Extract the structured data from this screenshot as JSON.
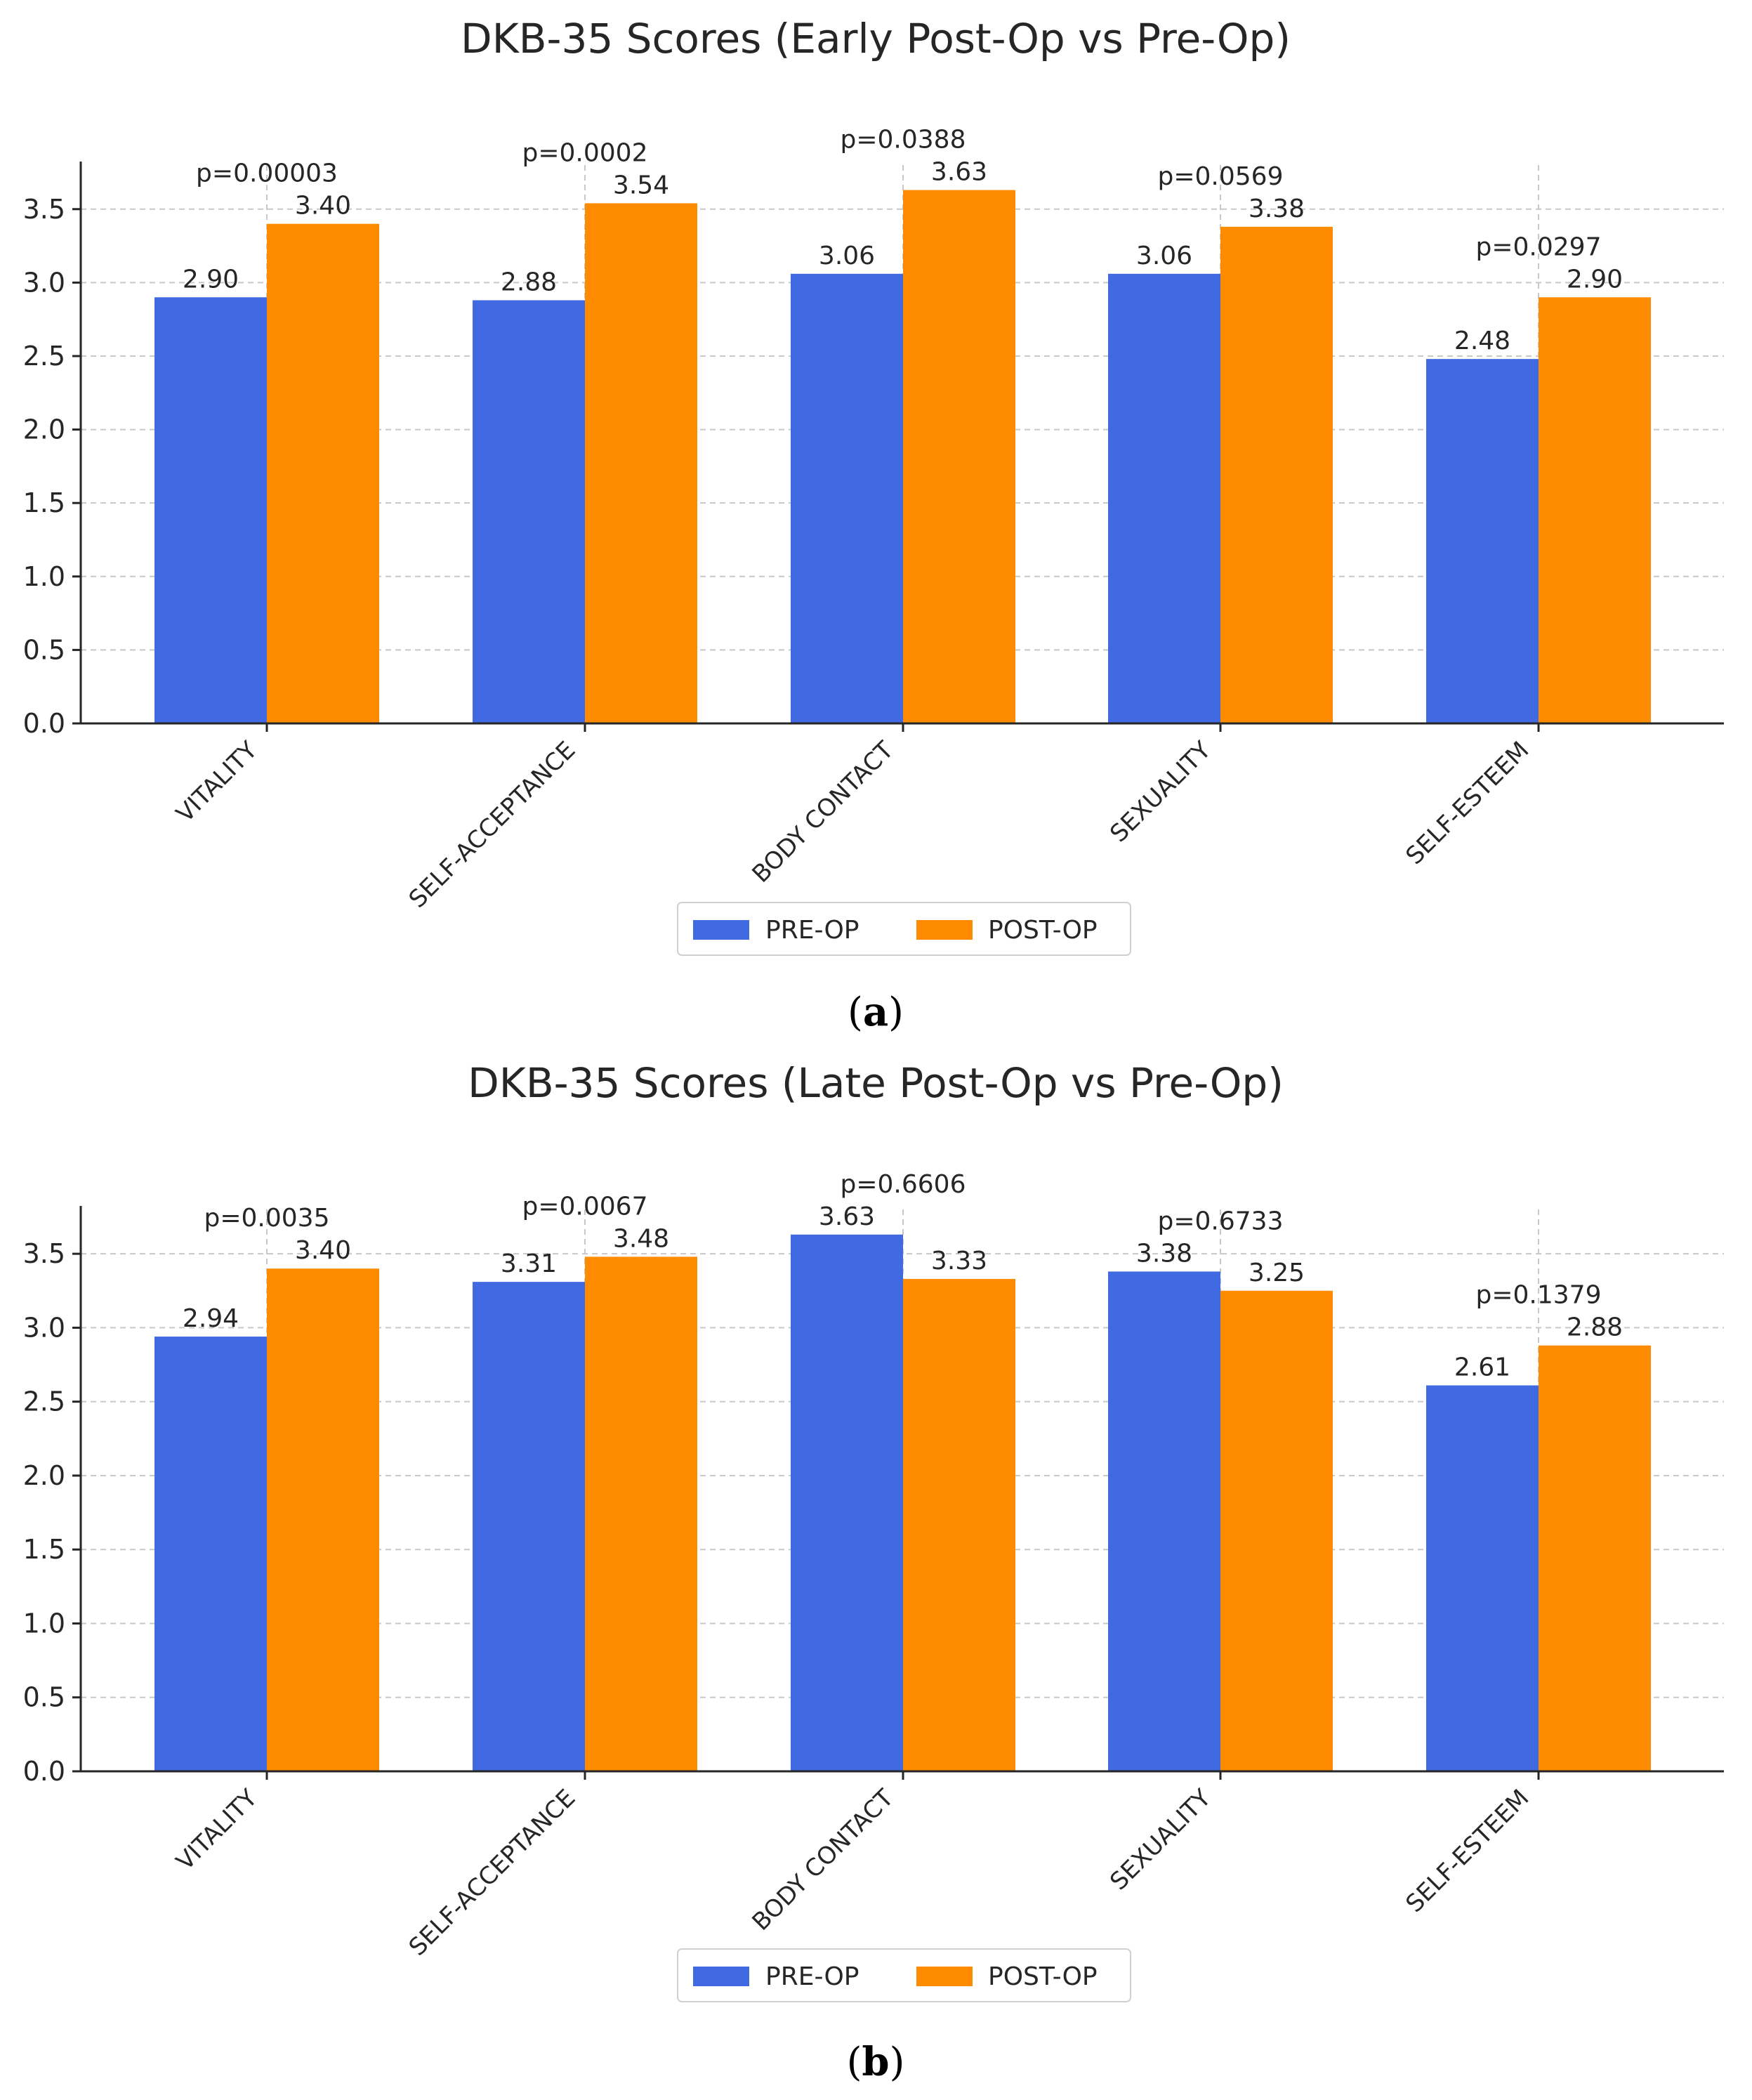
{
  "colors": {
    "pre": "#4169E1",
    "post": "#FF8C00"
  },
  "chart_data": [
    {
      "type": "bar",
      "title": "DKB-35 Scores (Early Post-Op vs Pre-Op)",
      "panel_label": "a",
      "categories": [
        "VITALITY",
        "SELF-ACCEPTANCE",
        "BODY CONTACT",
        "SEXUALITY",
        "SELF-ESTEEM"
      ],
      "series": [
        {
          "name": "PRE-OP",
          "values": [
            2.9,
            2.88,
            3.06,
            3.06,
            2.48
          ],
          "labels": [
            "2.90",
            "2.88",
            "3.06",
            "3.06",
            "2.48"
          ]
        },
        {
          "name": "POST-OP",
          "values": [
            3.4,
            3.54,
            3.63,
            3.38,
            2.9
          ],
          "labels": [
            "3.40",
            "3.54",
            "3.63",
            "3.38",
            "2.90"
          ]
        }
      ],
      "p_values": [
        "p=0.00003",
        "p=0.0002",
        "p=0.0388",
        "p=0.0569",
        "p=0.0297"
      ],
      "yticks": [
        "0.0",
        "0.5",
        "1.0",
        "1.5",
        "2.0",
        "2.5",
        "3.0",
        "3.5"
      ],
      "ylim": [
        0,
        3.8
      ],
      "grid": true,
      "legend": "bottom-center"
    },
    {
      "type": "bar",
      "title": "DKB-35 Scores (Late Post-Op vs Pre-Op)",
      "panel_label": "b",
      "categories": [
        "VITALITY",
        "SELF-ACCEPTANCE",
        "BODY CONTACT",
        "SEXUALITY",
        "SELF-ESTEEM"
      ],
      "series": [
        {
          "name": "PRE-OP",
          "values": [
            2.94,
            3.31,
            3.63,
            3.38,
            2.61
          ],
          "labels": [
            "2.94",
            "3.31",
            "3.63",
            "3.38",
            "2.61"
          ]
        },
        {
          "name": "POST-OP",
          "values": [
            3.4,
            3.48,
            3.33,
            3.25,
            2.88
          ],
          "labels": [
            "3.40",
            "3.48",
            "3.33",
            "3.25",
            "2.88"
          ]
        }
      ],
      "p_values": [
        "p=0.0035",
        "p=0.0067",
        "p=0.6606",
        "p=0.6733",
        "p=0.1379"
      ],
      "yticks": [
        "0.0",
        "0.5",
        "1.0",
        "1.5",
        "2.0",
        "2.5",
        "3.0",
        "3.5"
      ],
      "ylim": [
        0,
        3.8
      ],
      "grid": true,
      "legend": "bottom-center"
    }
  ]
}
